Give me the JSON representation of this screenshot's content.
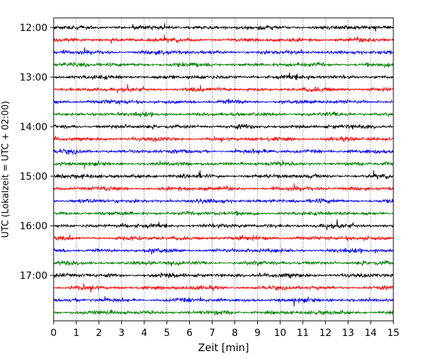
{
  "chart_data": {
    "type": "line",
    "title": "",
    "xlabel": "Zeit  [min]",
    "ylabel": "UTC (Lokalzeit = UTC + 02:00)",
    "xlim": [
      0,
      15
    ],
    "x_ticks": [
      "0",
      "1",
      "2",
      "3",
      "4",
      "5",
      "6",
      "7",
      "8",
      "9",
      "10",
      "11",
      "12",
      "13",
      "14",
      "15"
    ],
    "y_ticks": [
      "12:00",
      "13:00",
      "14:00",
      "15:00",
      "16:00",
      "17:00"
    ],
    "grid": "vertical dotted",
    "trace_start": "12:00",
    "trace_interval_minutes": 15,
    "trace_count": 24,
    "color_cycle": [
      "#000000",
      "#ff0000",
      "#0000ff",
      "#008000"
    ]
  }
}
